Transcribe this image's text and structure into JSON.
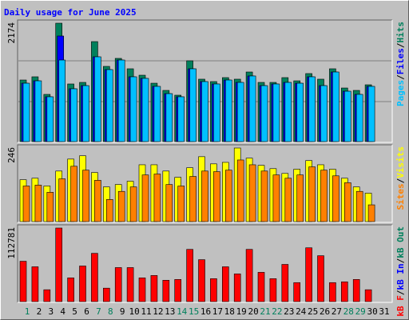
{
  "chart_data": [
    {
      "type": "bar",
      "title": "Daily usage for June 2025",
      "categories": [
        "1",
        "2",
        "3",
        "4",
        "5",
        "6",
        "7",
        "8",
        "9",
        "10",
        "11",
        "12",
        "13",
        "14",
        "15",
        "16",
        "17",
        "18",
        "19",
        "20",
        "21",
        "22",
        "23",
        "24",
        "25",
        "26",
        "27",
        "28",
        "29",
        "30",
        "31"
      ],
      "label_colors": [
        "#00805c",
        "#000000",
        "#000000",
        "#000000",
        "#000000",
        "#000000",
        "#00805c",
        "#00805c",
        "#000000",
        "#000000",
        "#000000",
        "#000000",
        "#000000",
        "#00805c",
        "#00805c",
        "#000000",
        "#000000",
        "#000000",
        "#000000",
        "#000000",
        "#00805c",
        "#00805c",
        "#000000",
        "#000000",
        "#000000",
        "#000000",
        "#000000",
        "#00805c",
        "#00805c",
        "#000000",
        "#000000"
      ],
      "legend_separator": "/",
      "grid": true,
      "ylim": [
        0,
        2174
      ],
      "yticks": [
        2174
      ],
      "series": [
        {
          "name": "Hits",
          "color": "#00805c",
          "values": [
            1131,
            1190,
            867,
            2174,
            1058,
            1087,
            1836,
            1381,
            1528,
            1337,
            1219,
            1072,
            940,
            852,
            1484,
            1146,
            1102,
            1175,
            1146,
            1278,
            1087,
            1087,
            1175,
            1116,
            1249,
            1146,
            1337,
            984,
            940,
            1043,
            0
          ]
        },
        {
          "name": "Files",
          "color": "#0000ff",
          "values": [
            1072,
            1116,
            823,
            1939,
            970,
            1028,
            1557,
            1322,
            1498,
            1190,
            1161,
            1014,
            881,
            823,
            1337,
            1102,
            1058,
            1131,
            1087,
            1205,
            1028,
            1058,
            1087,
            1072,
            1190,
            1028,
            1278,
            925,
            867,
            1014,
            0
          ]
        },
        {
          "name": "Pages",
          "color": "#00c0ff",
          "values": [
            1072,
            1116,
            823,
            1498,
            970,
            1028,
            1557,
            1322,
            1498,
            1190,
            1161,
            1014,
            881,
            823,
            1337,
            1102,
            1058,
            1131,
            1087,
            1205,
            1028,
            1058,
            1087,
            1072,
            1190,
            1028,
            1278,
            925,
            867,
            1014,
            0
          ]
        }
      ]
    },
    {
      "type": "bar",
      "ylim": [
        0,
        246
      ],
      "yticks": [
        246
      ],
      "series": [
        {
          "name": "Visits",
          "color": "#ffff00",
          "values": [
            140,
            145,
            119,
            169,
            209,
            220,
            164,
            116,
            124,
            135,
            190,
            190,
            169,
            148,
            180,
            217,
            193,
            198,
            246,
            212,
            188,
            177,
            161,
            175,
            204,
            190,
            175,
            145,
            116,
            95,
            0
          ]
        },
        {
          "name": "Sites",
          "color": "#ff8000",
          "values": [
            119,
            122,
            98,
            143,
            185,
            172,
            138,
            74,
            101,
            116,
            156,
            159,
            124,
            119,
            151,
            169,
            167,
            172,
            206,
            190,
            169,
            156,
            145,
            156,
            183,
            172,
            153,
            130,
            101,
            56,
            0
          ]
        }
      ]
    },
    {
      "type": "bar",
      "ylim": [
        0,
        112781
      ],
      "yticks": [
        112781
      ],
      "series": [
        {
          "name": "kB Out",
          "color": "#00805c"
        },
        {
          "name": "kB In",
          "color": "#0000ff"
        },
        {
          "name": "kB F",
          "color": "#ff0000",
          "values": [
            61848,
            53359,
            18191,
            112781,
            36381,
            54572,
            73975,
            20616,
            52146,
            52146,
            36381,
            40019,
            32743,
            33956,
            80038,
            64273,
            35168,
            53359,
            42445,
            80038,
            44870,
            35168,
            56997,
            29105,
            82464,
            70337,
            29105,
            30318,
            33956,
            18191,
            0
          ]
        }
      ]
    }
  ]
}
